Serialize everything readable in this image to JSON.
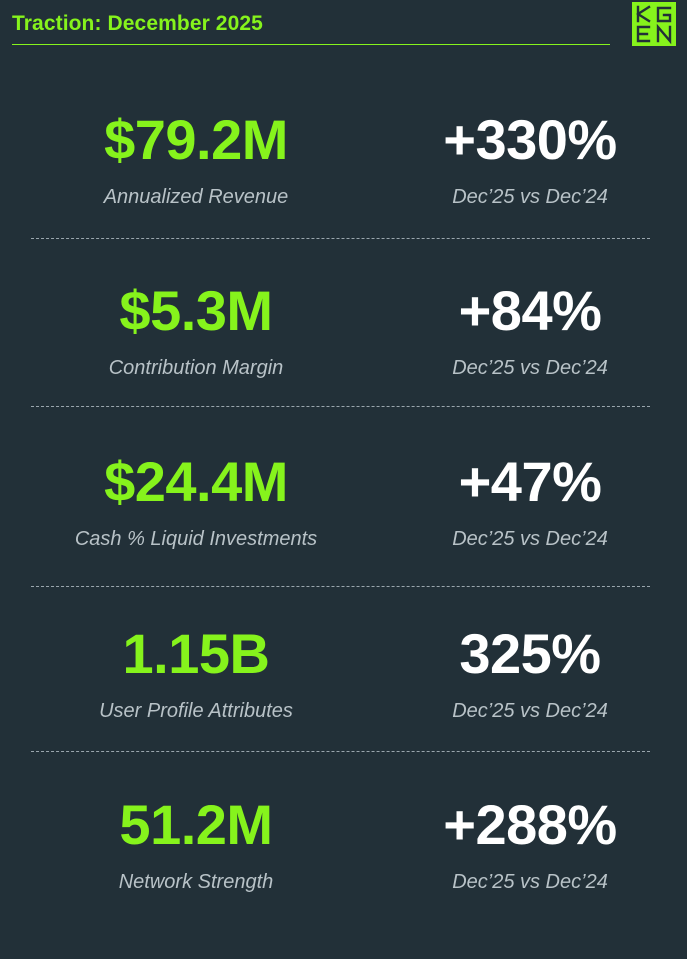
{
  "header": {
    "title": "Traction: December 2025",
    "logo_text": "KGEN"
  },
  "colors": {
    "background": "#223038",
    "accent": "#86f31c",
    "text_white": "#ffffff",
    "label_gray": "#b8c2c7"
  },
  "metrics": [
    {
      "value": "$79.2M",
      "label": "Annualized Revenue",
      "change": "+330%",
      "comparison": "Dec’25 vs Dec’24"
    },
    {
      "value": "$5.3M",
      "label": "Contribution Margin",
      "change": "+84%",
      "comparison": "Dec’25 vs Dec’24"
    },
    {
      "value": "$24.4M",
      "label": "Cash % Liquid Investments",
      "change": "+47%",
      "comparison": "Dec’25 vs Dec’24"
    },
    {
      "value": "1.15B",
      "label": "User Profile Attributes",
      "change": "325%",
      "comparison": "Dec’25 vs Dec’24"
    },
    {
      "value": "51.2M",
      "label": "Network Strength",
      "change": "+288%",
      "comparison": "Dec’25 vs Dec’24"
    }
  ]
}
